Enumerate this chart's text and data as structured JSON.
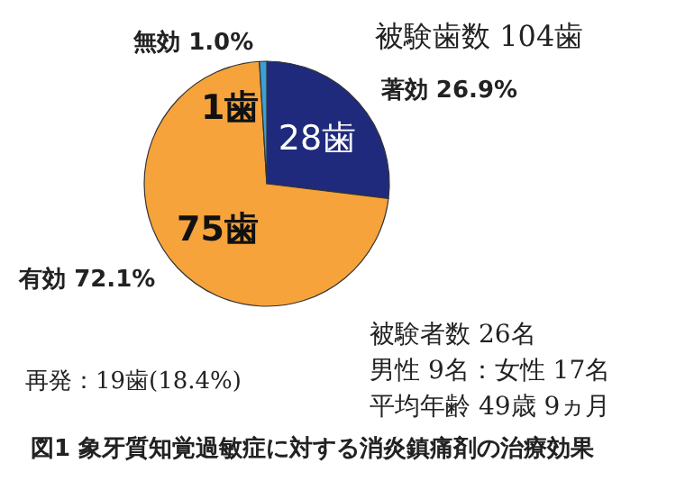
{
  "chart_data": {
    "type": "pie",
    "title": "図1 象牙質知覚過敏症に対する消炎鎮痛剤の治療効果",
    "categories": [
      "著効 26.9%",
      "有効 72.1%",
      "無効 1.0%"
    ],
    "values": [
      28,
      75,
      1
    ],
    "colors": [
      "#1f2a7c",
      "#f6a33c",
      "#3b9fd6"
    ],
    "value_labels": [
      "28歯",
      "75歯",
      "1歯"
    ],
    "annotations": [
      "被験歯数 104歯",
      "被験者数 26名",
      "男性 9名：女性 17名",
      "平均年齢 49歳 9ヵ月",
      "再発：19歯(18.4%)"
    ]
  }
}
